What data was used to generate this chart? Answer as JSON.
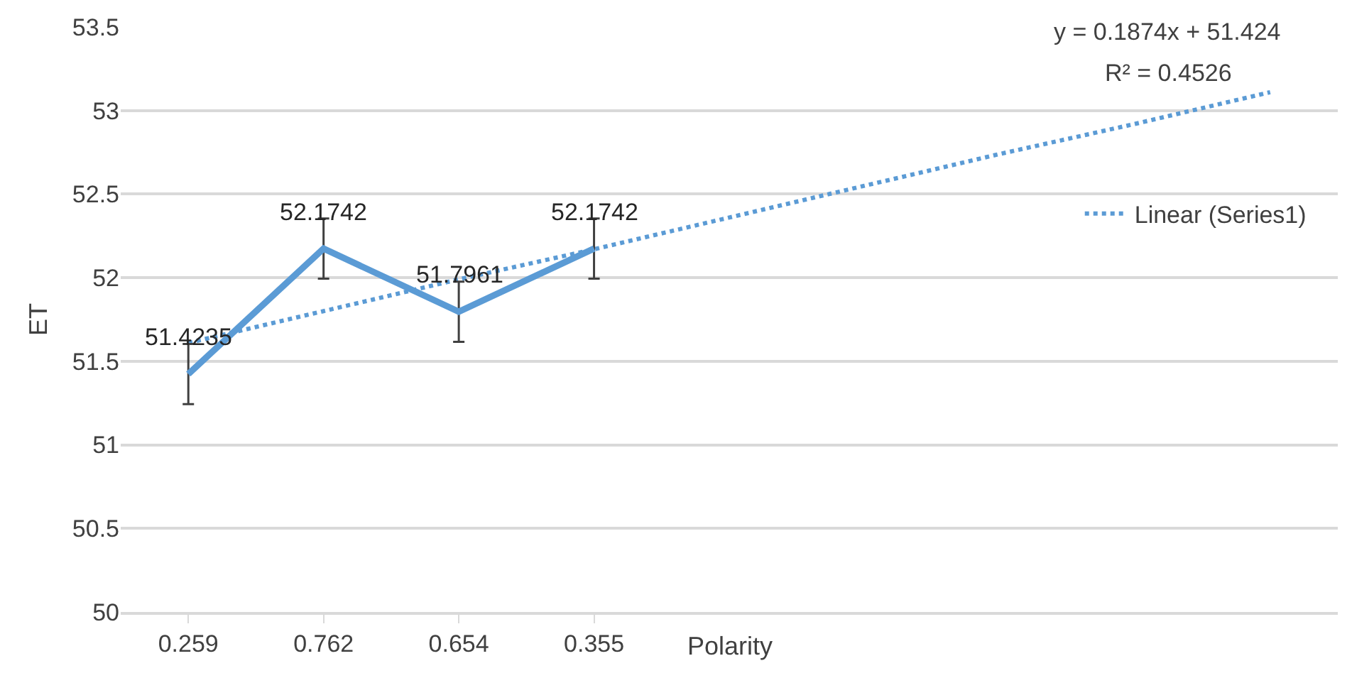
{
  "chart_data": {
    "type": "line",
    "xlabel": "Polarity",
    "ylabel": "ET",
    "categories": [
      "0.259",
      "0.762",
      "0.654",
      "0.355",
      null,
      null,
      null,
      null,
      null
    ],
    "series": [
      {
        "color": "#5b9bd5",
        "values": [
          51.4235,
          52.1742,
          51.7961,
          52.1742,
          null,
          null,
          null,
          null,
          null
        ],
        "errors": [
          0.18,
          0.18,
          0.18,
          0.18,
          null,
          null,
          null,
          null,
          null
        ],
        "value_labels": [
          "51.4235",
          "52.1742",
          "51.7961",
          "52.1742",
          null,
          null,
          null,
          null,
          null
        ]
      },
      {
        "name": "Linear (Series1)",
        "color": "#5b9bd5",
        "line_style": "dotted",
        "values": [
          51.61,
          51.8,
          51.99,
          52.17,
          52.36,
          52.55,
          52.74,
          52.92,
          53.11
        ]
      }
    ],
    "annotations": [
      "y = 0.1874x + 51.424",
      "R² = 0.4526"
    ],
    "ylim": [
      50,
      53.5
    ],
    "yticks": [
      50,
      50.5,
      51,
      51.5,
      52,
      52.5,
      53,
      53.5
    ],
    "grid": "y",
    "legend": "right",
    "marker": "none"
  }
}
